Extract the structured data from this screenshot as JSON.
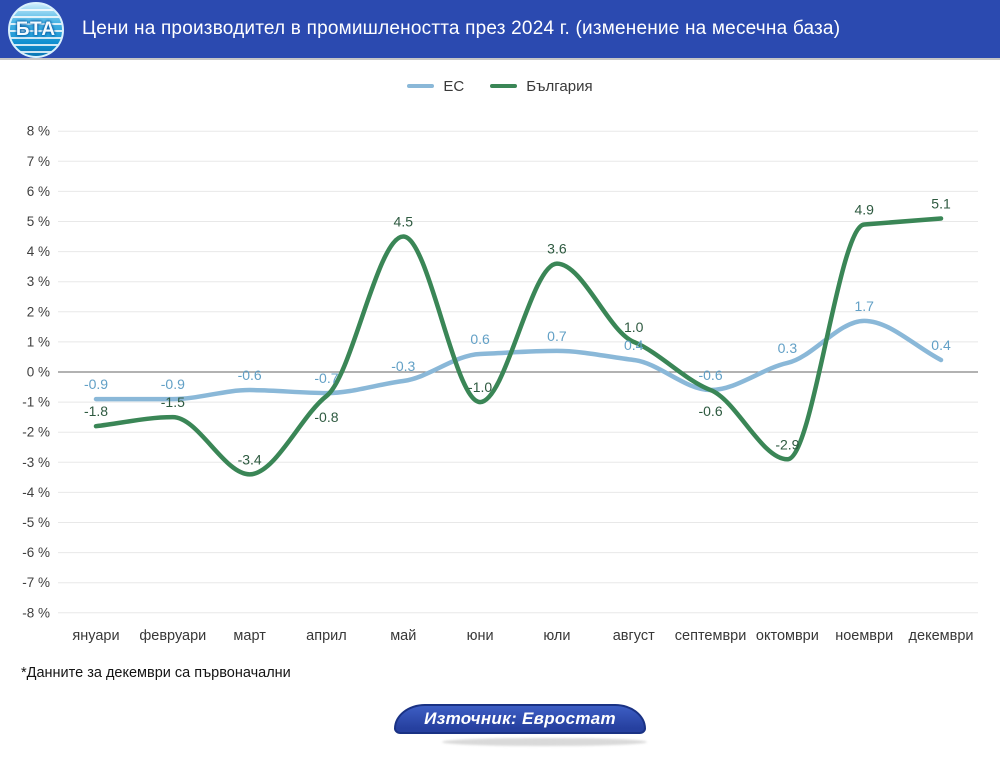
{
  "header": {
    "title": "Цени на производител в промишлеността през 2024 г. (изменение на месечна база)",
    "logo_text": "БТА"
  },
  "chart_data": {
    "type": "line",
    "title": "Цени на производител в промишлеността през 2024 г. (изменение на месечна база)",
    "categories": [
      "януари",
      "февруари",
      "март",
      "април",
      "май",
      "юни",
      "юли",
      "август",
      "септември",
      "октомври",
      "ноември",
      "декември"
    ],
    "series": [
      {
        "id": "eu",
        "name": "ЕС",
        "color": "#8ab8d8",
        "label_color": "#62a0c6",
        "values": [
          -0.9,
          -0.9,
          -0.6,
          -0.7,
          -0.3,
          0.6,
          0.7,
          0.4,
          -0.6,
          0.3,
          1.7,
          0.4
        ],
        "labels_below": []
      },
      {
        "id": "bulgaria",
        "name": "България",
        "color": "#3a8656",
        "label_color": "#2e5a40",
        "values": [
          -1.8,
          -1.5,
          -3.4,
          -0.8,
          4.5,
          -1.0,
          3.6,
          1.0,
          -0.6,
          -2.9,
          4.9,
          5.1
        ],
        "labels_below": [
          3,
          8
        ]
      }
    ],
    "ylim": [
      -8,
      8
    ],
    "ytick_labels": [
      "8 %",
      "7 %",
      "6 %",
      "5 %",
      "4 %",
      "3 %",
      "2 %",
      "1 %",
      "0 %",
      "-1 %",
      "-2 %",
      "-3 %",
      "-4 %",
      "-5 %",
      "-6 %",
      "-7 %",
      "-8 %"
    ],
    "grid": true,
    "legend_position": "top",
    "value_decimals": 1
  },
  "footnote": "*Данните за декември са първоначални",
  "source_badge": "Източник: Евростат",
  "colors": {
    "header_bg": "#2b4ab0",
    "gridline": "#e8e8e8",
    "zero_line": "#858585",
    "axis_text": "#3f3f3f"
  }
}
